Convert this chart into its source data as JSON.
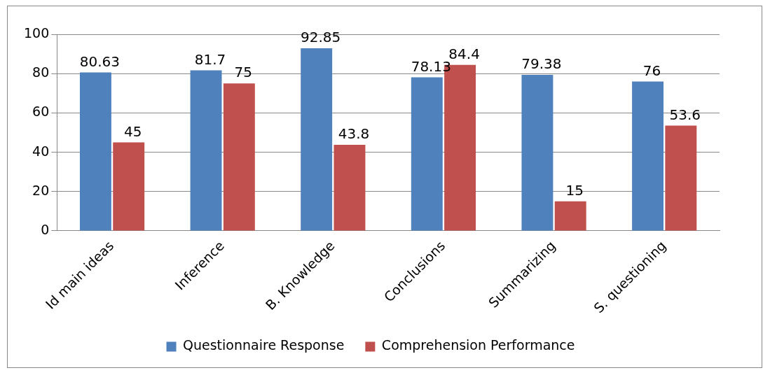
{
  "chart_data": {
    "type": "bar",
    "categories": [
      "Id main ideas",
      "Inference",
      "B. Knowledge",
      "Conclusions",
      "Summarizing",
      "S. questioning"
    ],
    "series": [
      {
        "name": "Questionnaire Response",
        "color": "#4f81bd",
        "values": [
          80.63,
          81.7,
          92.85,
          78.13,
          79.38,
          76
        ]
      },
      {
        "name": "Comprehension Performance",
        "color": "#c0504d",
        "values": [
          45,
          75,
          43.8,
          84.4,
          15,
          53.6
        ]
      }
    ],
    "ylim": [
      0,
      100
    ],
    "yticks": [
      0,
      20,
      40,
      60,
      80,
      100
    ],
    "grid": "y",
    "legend": "bottom",
    "data_labels": true
  }
}
